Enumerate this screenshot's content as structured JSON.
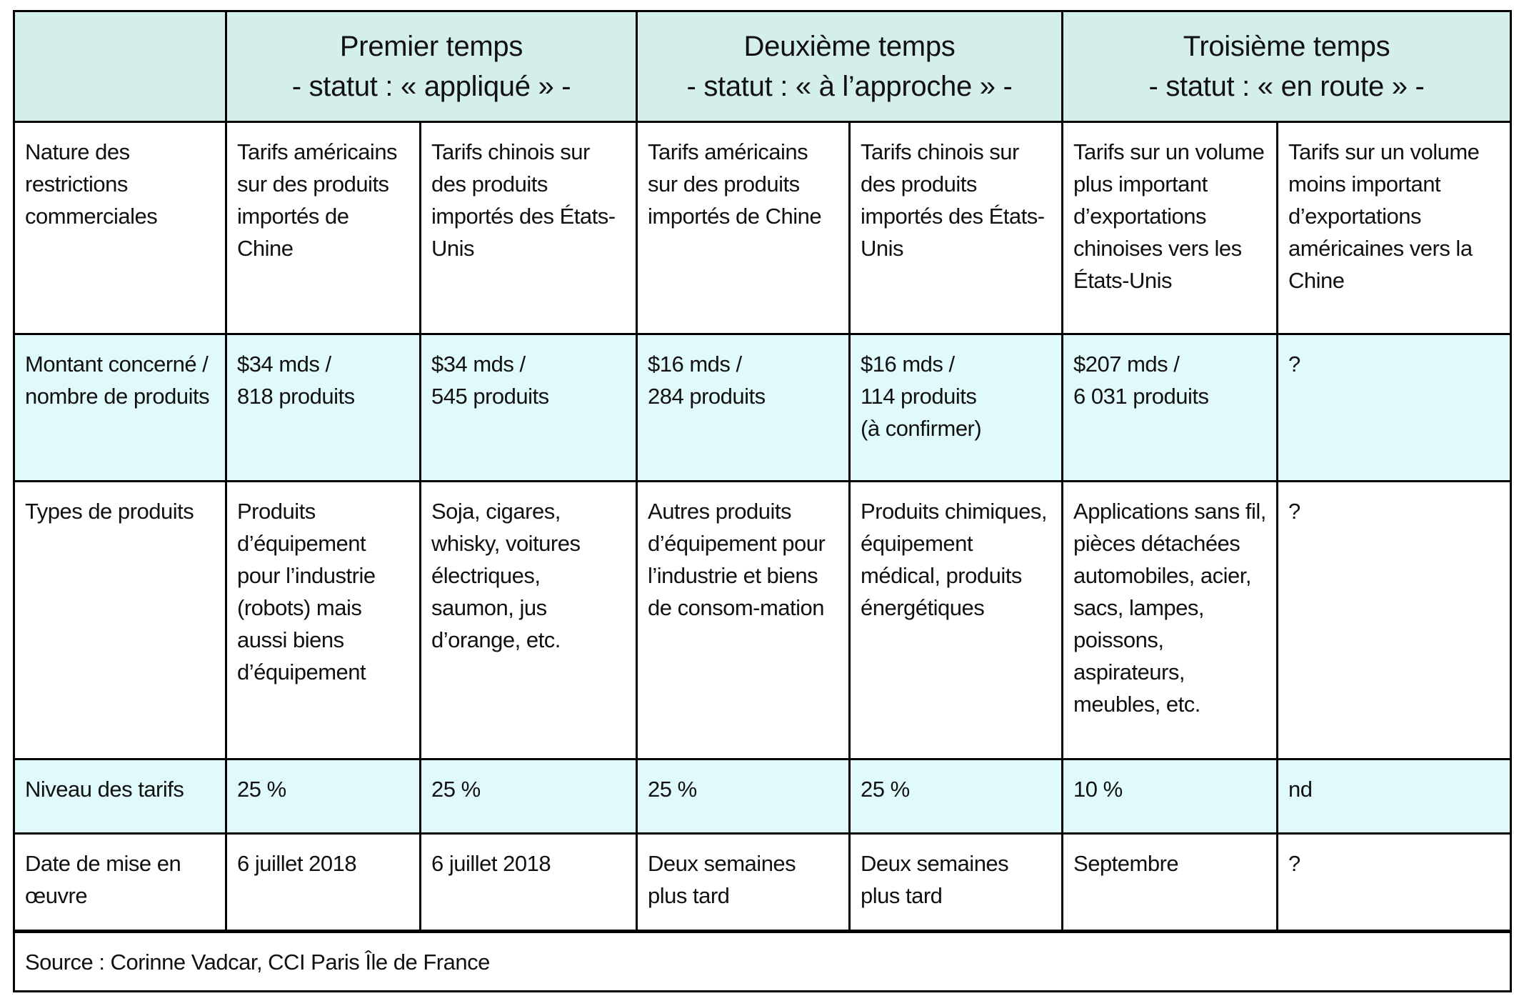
{
  "header": {
    "empty": "",
    "groups": [
      {
        "title": "Premier temps",
        "status": "- statut : « appliqué » -"
      },
      {
        "title": "Deuxième temps",
        "status": "- statut : « à l’approche » -"
      },
      {
        "title": "Troisième temps",
        "status": "- statut : « en route » -"
      }
    ]
  },
  "rows": [
    {
      "label": "Nature des restrictions commerciales",
      "cells": [
        "Tarifs américains sur des produits importés de Chine",
        "Tarifs chinois sur des produits importés des États-Unis",
        "Tarifs américains sur des produits importés de Chine",
        "Tarifs chinois sur des produits importés des États-Unis",
        "Tarifs sur un volume plus important d’exportations chinoises vers les États-Unis",
        "Tarifs sur un volume moins important d’exportations américaines vers la Chine"
      ]
    },
    {
      "label": "Montant concerné / nombre de produits",
      "cells": [
        "$34 mds /\n818 produits",
        "$34 mds /\n545 produits",
        "$16 mds /\n284 produits",
        "$16 mds /\n114 produits\n(à confirmer)",
        "$207 mds /\n6 031 produits",
        "?"
      ]
    },
    {
      "label": "Types de produits",
      "cells": [
        "Produits d’équipement pour l’industrie (robots) mais aussi biens d’équipement",
        "Soja, cigares, whisky, voitures électriques, saumon, jus d’orange, etc.",
        "Autres produits d’équipement pour l’industrie et biens de consom-mation",
        "Produits chimiques, équipement médical, produits énergétiques",
        "Applications sans fil, pièces détachées automobiles, acier, sacs, lampes, poissons, aspirateurs, meubles, etc.",
        "?"
      ]
    },
    {
      "label": "Niveau des tarifs",
      "cells": [
        "25 %",
        "25 %",
        "25 %",
        "25 %",
        "10 %",
        "nd"
      ]
    },
    {
      "label": "Date de mise en œuvre",
      "cells": [
        "6 juillet 2018",
        "6 juillet 2018",
        "Deux semaines plus tard",
        "Deux semaines plus tard",
        "Septembre",
        "?"
      ]
    }
  ],
  "source": "Source : Corinne Vadcar, CCI Paris Île de France"
}
